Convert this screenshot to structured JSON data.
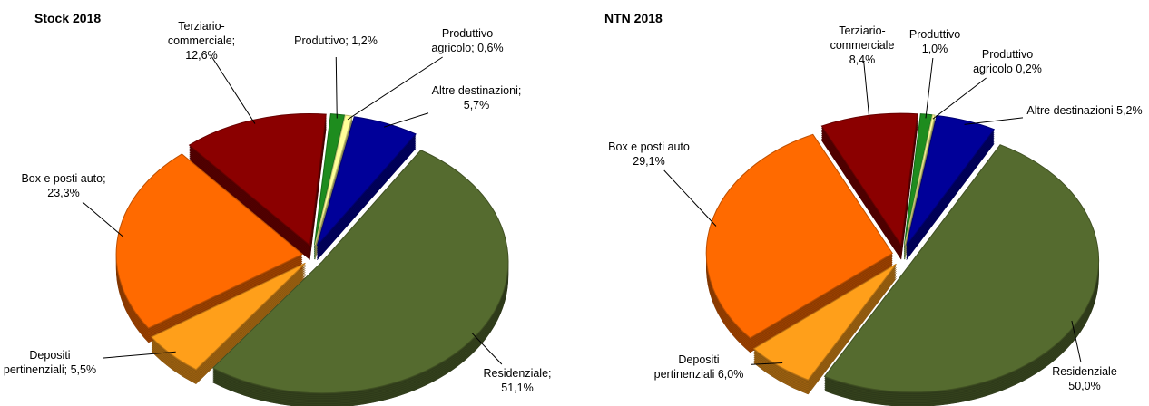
{
  "chart_data": [
    {
      "type": "pie",
      "title": "Stock 2018",
      "categories": [
        "Produttivo;",
        "Produttivo agricolo;",
        "Altre destinazioni;",
        "Residenziale;",
        "Depositi pertinenziali;",
        "Box e posti auto;",
        "Terziario-commerciale;"
      ],
      "values": [
        1.2,
        0.6,
        5.7,
        51.1,
        5.5,
        23.3,
        12.6
      ],
      "value_labels": [
        "1,2%",
        "0,6%",
        "5,7%",
        "51,1%",
        "5,5%",
        "23,3%",
        "12,6%"
      ],
      "colors": [
        "#1e8c1e",
        "#ffff99",
        "#000099",
        "#556b2f",
        "#ff9f1a",
        "#ff6a00",
        "#8b0000"
      ]
    },
    {
      "type": "pie",
      "title": "NTN 2018",
      "categories": [
        "Produttivo",
        "Produttivo agricolo",
        "Altre destinazioni",
        "Residenziale",
        "Depositi pertinenziali",
        "Box e posti auto",
        "Terziario-commerciale"
      ],
      "values": [
        1.0,
        0.2,
        5.2,
        50.0,
        6.0,
        29.1,
        8.4
      ],
      "value_labels": [
        "1,0%",
        "0,2%",
        "5,2%",
        "50,0%",
        "6,0%",
        "29,1%",
        "8,4%"
      ],
      "colors": [
        "#1e8c1e",
        "#ffff99",
        "#000099",
        "#556b2f",
        "#ff9f1a",
        "#ff6a00",
        "#8b0000"
      ]
    }
  ]
}
